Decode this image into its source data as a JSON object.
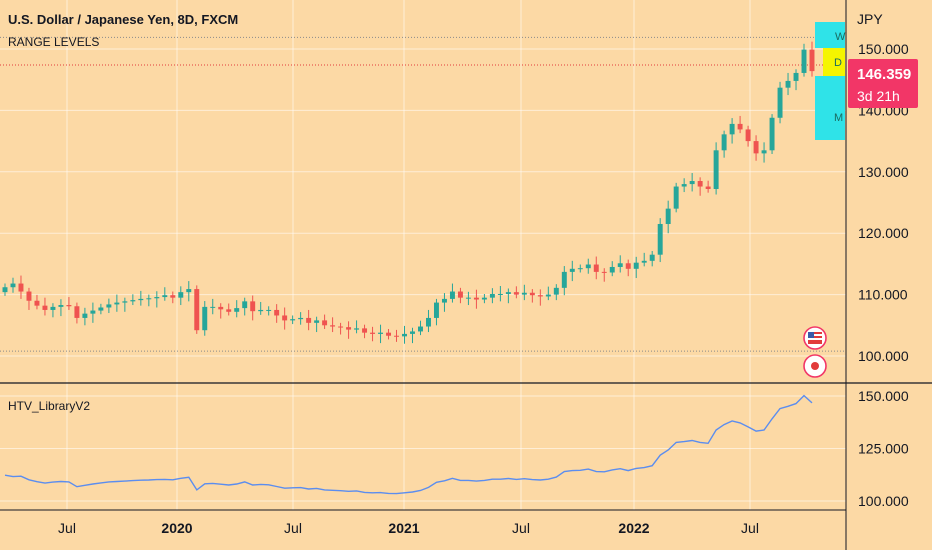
{
  "header": {
    "title": "U.S. Dollar / Japanese Yen, 8D, FXCM",
    "indicator": "RANGE LEVELS",
    "currency": "JPY"
  },
  "price_tag": {
    "value": "146.359",
    "countdown": "3d 21h"
  },
  "colors": {
    "background": "#FCD9A5",
    "up": "#26A69A",
    "down": "#EF5350",
    "line": "#5B8DEF",
    "tag": "#F23667",
    "range_w": "#2FE3E8",
    "range_d": "#F5F500",
    "range_m": "#2FE3E8"
  },
  "range_boxes": [
    {
      "label": "W",
      "bg": "range_w"
    },
    {
      "label": "D",
      "bg": "range_d"
    },
    {
      "label": "M",
      "bg": "range_m"
    }
  ],
  "events": [
    {
      "icon": "us-flag-icon"
    },
    {
      "icon": "japan-flag-icon"
    }
  ],
  "lower_pane": {
    "title": "HTV_LibraryV2"
  },
  "x_axis": {
    "labels": [
      "Jul",
      "2020",
      "Jul",
      "2021",
      "Jul",
      "2022",
      "Jul"
    ],
    "bold": [
      false,
      true,
      false,
      true,
      false,
      true,
      false
    ]
  },
  "chart_data": [
    {
      "type": "candlestick",
      "title": "U.S. Dollar / Japanese Yen, 8D, FXCM",
      "y_ticks": [
        "150.000",
        "140.000",
        "130.000",
        "120.000",
        "110.000",
        "100.000"
      ],
      "ylim": [
        96.5,
        154.5
      ],
      "reference_levels": [
        151.9,
        147.4,
        100.8
      ],
      "x_labels": [
        "Jul",
        "2020",
        "Jul",
        "2021",
        "Jul",
        "2022",
        "Jul"
      ],
      "close": [
        111.2,
        111.8,
        110.5,
        109.0,
        108.2,
        107.5,
        108.0,
        108.3,
        108.1,
        106.2,
        106.9,
        107.4,
        107.9,
        108.4,
        108.7,
        108.9,
        109.1,
        109.3,
        109.4,
        109.6,
        109.9,
        109.5,
        110.4,
        110.9,
        104.2,
        108.0,
        108.0,
        107.6,
        107.2,
        107.8,
        108.9,
        107.3,
        107.5,
        107.5,
        106.6,
        105.8,
        106.0,
        106.2,
        105.4,
        105.8,
        105.0,
        104.8,
        104.7,
        104.3,
        104.5,
        103.8,
        103.6,
        103.8,
        103.3,
        103.2,
        103.6,
        104.0,
        104.8,
        106.2,
        108.7,
        109.3,
        110.5,
        109.5,
        109.5,
        109.2,
        109.5,
        110.1,
        110.1,
        110.4,
        110.0,
        110.3,
        109.9,
        109.7,
        110.0,
        111.1,
        113.7,
        114.2,
        114.3,
        114.9,
        113.7,
        113.6,
        114.5,
        115.1,
        114.2,
        115.2,
        115.5,
        116.5,
        121.5,
        124.0,
        127.6,
        128.0,
        128.5,
        127.6,
        127.2,
        133.5,
        136.1,
        137.8,
        136.9,
        135.0,
        133.0,
        133.5,
        138.8,
        143.7,
        144.8,
        146.1,
        149.9,
        146.4
      ],
      "series_range": [
        1,
        102
      ]
    },
    {
      "type": "line",
      "title": "HTV_LibraryV2",
      "y_ticks": [
        "150.000",
        "125.000",
        "100.000"
      ],
      "ylim": [
        99,
        153
      ],
      "y": [
        112.3,
        111.6,
        111.8,
        110.1,
        109.2,
        108.5,
        109.0,
        109.3,
        109.1,
        106.8,
        107.5,
        108.1,
        108.6,
        109.1,
        109.3,
        109.5,
        109.7,
        109.9,
        110.0,
        110.2,
        110.3,
        110.1,
        110.8,
        111.3,
        105.3,
        108.2,
        108.4,
        108.0,
        107.6,
        108.1,
        109.1,
        107.6,
        107.9,
        107.7,
        106.9,
        106.1,
        106.3,
        106.4,
        105.7,
        106.0,
        105.3,
        105.1,
        104.9,
        104.6,
        104.8,
        104.1,
        103.9,
        104.0,
        103.6,
        103.5,
        103.9,
        104.3,
        105.0,
        106.5,
        108.9,
        109.6,
        110.8,
        109.8,
        109.8,
        109.5,
        109.8,
        110.4,
        110.4,
        110.7,
        110.3,
        110.6,
        110.2,
        110.0,
        110.4,
        111.4,
        114.0,
        114.5,
        114.6,
        115.2,
        114.0,
        113.9,
        114.8,
        115.4,
        114.5,
        115.5,
        115.9,
        116.8,
        121.8,
        124.3,
        127.9,
        128.3,
        128.8,
        127.9,
        127.5,
        133.8,
        136.4,
        138.1,
        137.2,
        135.3,
        133.3,
        133.8,
        139.1,
        144.0,
        145.1,
        146.4,
        150.2,
        146.7
      ]
    }
  ]
}
